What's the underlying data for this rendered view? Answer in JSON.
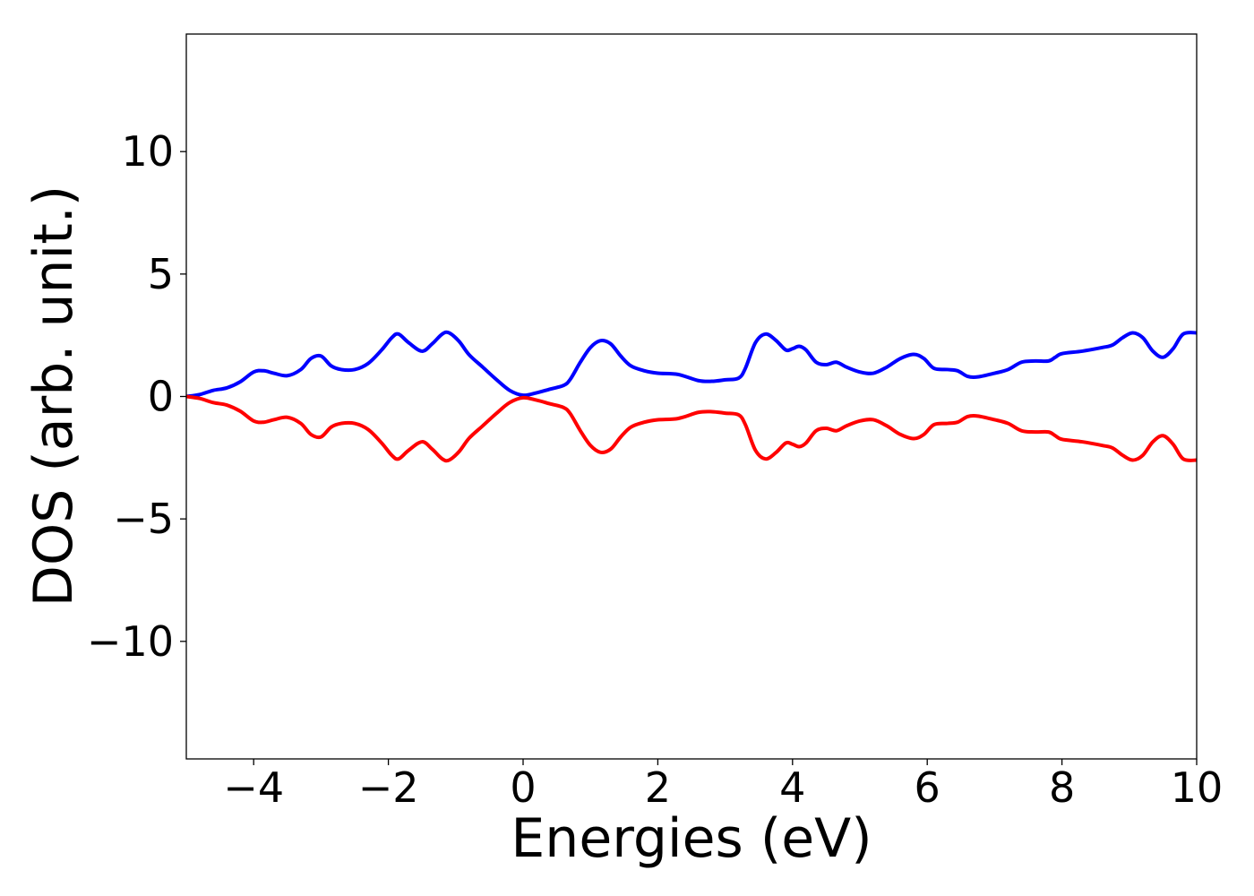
{
  "chart_data": {
    "type": "line",
    "title": "",
    "xlabel": "Energies (eV)",
    "ylabel": "DOS (arb. unit.)",
    "xlim": [
      -5,
      10
    ],
    "ylim": [
      -14.8,
      14.8
    ],
    "x_ticks": [
      -4,
      -2,
      0,
      2,
      4,
      6,
      8,
      10
    ],
    "x_tick_labels": [
      "−4",
      "−2",
      "0",
      "2",
      "4",
      "6",
      "8",
      "10"
    ],
    "y_ticks": [
      -10,
      -5,
      0,
      5,
      10
    ],
    "y_tick_labels": [
      "−10",
      "−5",
      "0",
      "5",
      "10"
    ],
    "grid": false,
    "legend": "none",
    "x": [
      -5.0,
      -4.8,
      -4.6,
      -4.4,
      -4.2,
      -4.0,
      -3.85,
      -3.7,
      -3.5,
      -3.3,
      -3.15,
      -3.0,
      -2.85,
      -2.7,
      -2.5,
      -2.3,
      -2.1,
      -1.95,
      -1.85,
      -1.7,
      -1.5,
      -1.35,
      -1.2,
      -1.1,
      -0.95,
      -0.8,
      -0.6,
      -0.4,
      -0.2,
      0.0,
      0.2,
      0.4,
      0.6,
      0.7,
      0.85,
      1.0,
      1.15,
      1.3,
      1.45,
      1.6,
      1.8,
      2.0,
      2.3,
      2.6,
      2.8,
      3.0,
      3.2,
      3.3,
      3.45,
      3.6,
      3.75,
      3.9,
      4.0,
      4.1,
      4.2,
      4.35,
      4.5,
      4.65,
      4.8,
      5.0,
      5.2,
      5.4,
      5.6,
      5.8,
      5.95,
      6.1,
      6.3,
      6.45,
      6.6,
      6.75,
      7.0,
      7.2,
      7.4,
      7.6,
      7.8,
      7.9,
      8.0,
      8.3,
      8.6,
      8.75,
      8.9,
      9.05,
      9.2,
      9.35,
      9.5,
      9.65,
      9.8,
      10.0
    ],
    "series": [
      {
        "color": "#0000ff",
        "values": [
          0.0,
          0.08,
          0.25,
          0.35,
          0.6,
          1.0,
          1.05,
          0.95,
          0.85,
          1.1,
          1.55,
          1.65,
          1.25,
          1.1,
          1.1,
          1.35,
          1.9,
          2.4,
          2.55,
          2.2,
          1.85,
          2.15,
          2.55,
          2.6,
          2.25,
          1.7,
          1.2,
          0.7,
          0.25,
          0.05,
          0.15,
          0.3,
          0.45,
          0.7,
          1.4,
          2.0,
          2.28,
          2.15,
          1.65,
          1.25,
          1.05,
          0.95,
          0.9,
          0.65,
          0.62,
          0.68,
          0.75,
          1.15,
          2.2,
          2.55,
          2.3,
          1.9,
          1.95,
          2.05,
          1.9,
          1.4,
          1.3,
          1.4,
          1.2,
          1.0,
          0.95,
          1.2,
          1.55,
          1.72,
          1.55,
          1.15,
          1.1,
          1.05,
          0.82,
          0.8,
          0.95,
          1.1,
          1.4,
          1.45,
          1.45,
          1.6,
          1.75,
          1.85,
          2.0,
          2.1,
          2.4,
          2.6,
          2.4,
          1.85,
          1.6,
          1.95,
          2.55,
          2.6
        ]
      },
      {
        "color": "#ff0000",
        "values": [
          0.0,
          -0.08,
          -0.25,
          -0.35,
          -0.6,
          -1.0,
          -1.05,
          -0.95,
          -0.85,
          -1.1,
          -1.55,
          -1.65,
          -1.25,
          -1.1,
          -1.1,
          -1.35,
          -1.9,
          -2.4,
          -2.55,
          -2.2,
          -1.85,
          -2.15,
          -2.55,
          -2.6,
          -2.25,
          -1.7,
          -1.2,
          -0.7,
          -0.25,
          -0.05,
          -0.15,
          -0.3,
          -0.45,
          -0.7,
          -1.4,
          -2.0,
          -2.28,
          -2.15,
          -1.65,
          -1.25,
          -1.05,
          -0.95,
          -0.9,
          -0.65,
          -0.62,
          -0.68,
          -0.75,
          -1.15,
          -2.2,
          -2.55,
          -2.3,
          -1.9,
          -1.95,
          -2.05,
          -1.9,
          -1.4,
          -1.3,
          -1.4,
          -1.2,
          -1.0,
          -0.95,
          -1.2,
          -1.55,
          -1.72,
          -1.55,
          -1.15,
          -1.1,
          -1.05,
          -0.82,
          -0.8,
          -0.95,
          -1.1,
          -1.4,
          -1.45,
          -1.45,
          -1.6,
          -1.75,
          -1.85,
          -2.0,
          -2.1,
          -2.4,
          -2.6,
          -2.4,
          -1.85,
          -1.6,
          -1.95,
          -2.55,
          -2.6
        ]
      }
    ]
  }
}
